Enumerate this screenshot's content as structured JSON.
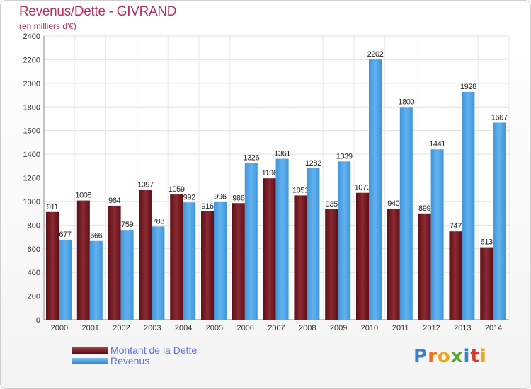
{
  "chart_data": {
    "type": "bar",
    "title": "Revenus/Dette - GIVRAND",
    "subtitle": "(en milliers d'€)",
    "categories": [
      "2000",
      "2001",
      "2002",
      "2003",
      "2004",
      "2005",
      "2006",
      "2007",
      "2008",
      "2009",
      "2010",
      "2011",
      "2012",
      "2013",
      "2014"
    ],
    "series": [
      {
        "name": "Montant de la Dette",
        "color": "#7b1c22",
        "values": [
          911,
          1008,
          964,
          1097,
          1059,
          916,
          986,
          1196,
          1051,
          935,
          1073,
          940,
          899,
          747,
          613
        ],
        "labels": [
          "911",
          "1008",
          "964",
          "1097",
          "1059",
          "916",
          "986",
          "1196",
          "1051",
          "935",
          "1073",
          "940",
          "899",
          "747",
          "613"
        ]
      },
      {
        "name": "Revenus",
        "color": "#4aa3e6",
        "values": [
          677,
          666,
          759,
          788,
          992,
          996,
          1326,
          1361,
          1282,
          1339,
          2202,
          1800,
          1441,
          1928,
          1667
        ],
        "labels": [
          "677",
          "666",
          "759",
          "788",
          "992",
          "996",
          "1326",
          "1361",
          "1282",
          "1339",
          "2202",
          "1800",
          "1441",
          "1928",
          "1667"
        ]
      }
    ],
    "ylim": [
      0,
      2400
    ],
    "yticks": [
      0,
      200,
      400,
      600,
      800,
      1000,
      1200,
      1400,
      1600,
      1800,
      2000,
      2200,
      2400
    ],
    "grid": true,
    "legend_position": "bottom-left"
  },
  "brand": {
    "letters": [
      "P",
      "r",
      "o",
      "x",
      "i",
      "t",
      "i"
    ]
  }
}
